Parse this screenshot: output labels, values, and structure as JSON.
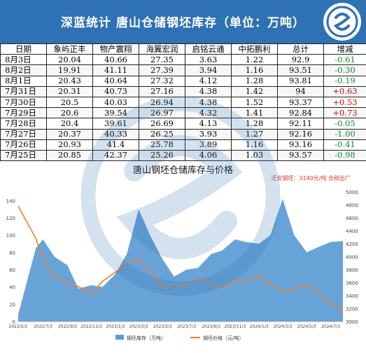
{
  "header": {
    "title": "深蓝统计  唐山仓储钢坯库存（单位：万吨）"
  },
  "table": {
    "columns": [
      "日期",
      "象屿正丰",
      "物产震翔",
      "海翼宏润",
      "启铭云通",
      "中拓鹏利",
      "总计",
      "增减"
    ],
    "rows": [
      [
        "8月3日",
        "20.04",
        "40.66",
        "27.35",
        "3.63",
        "1.22",
        "92.9",
        "-0.61"
      ],
      [
        "8月2日",
        "19.91",
        "41.11",
        "27.39",
        "3.94",
        "1.16",
        "93.51",
        "-0.30"
      ],
      [
        "8月1日",
        "20.43",
        "40.64",
        "27.32",
        "4.12",
        "1.28",
        "93.81",
        "-0.19"
      ],
      [
        "7月31日",
        "20.31",
        "40.73",
        "27.16",
        "4.38",
        "1.42",
        "94",
        "+0.63"
      ],
      [
        "7月30日",
        "20.5",
        "40.03",
        "26.94",
        "4.38",
        "1.52",
        "93.37",
        "+0.53"
      ],
      [
        "7月29日",
        "20.6",
        "39.54",
        "26.97",
        "4.32",
        "1.41",
        "92.84",
        "+0.73"
      ],
      [
        "7月28日",
        "20.4",
        "39.61",
        "26.69",
        "4.13",
        "1.28",
        "92.11",
        "-0.05"
      ],
      [
        "7月27日",
        "20.37",
        "40.33",
        "26.25",
        "3.93",
        "1.27",
        "92.16",
        "-1.00"
      ],
      [
        "7月26日",
        "20.93",
        "41.4",
        "25.78",
        "3.89",
        "1.16",
        "93.16",
        "-0.41"
      ],
      [
        "7月25日",
        "20.85",
        "42.37",
        "25.26",
        "4.06",
        "1.03",
        "93.57",
        "-0.98"
      ]
    ]
  },
  "colors": {
    "header": "#2f71b5",
    "area": "#5b9bd5",
    "price": "#ed7d31",
    "positive": "#d40000",
    "negative": "#0a8a2a"
  },
  "chart_data": {
    "type": "area",
    "title": "唐山钢坯仓储库存与价格",
    "annotation": "迁安钢坯：3140元/吨 含税出厂",
    "x": [
      "2022/5/1",
      "2022/6/15",
      "2022/7/3",
      "2022/8/1",
      "2022/9/3",
      "2022/10/1",
      "2022/11/3",
      "2022/12/1",
      "2023/1/3",
      "2023/2/1",
      "2023/3/3",
      "2023/4/1",
      "2023/5/3",
      "2023/6/1",
      "2023/7/3",
      "2023/8/1",
      "2023/9/3",
      "2023/10/1",
      "2023/11/3",
      "2023/12/1",
      "2024/1/3",
      "2024/2/1",
      "2024/3/3",
      "2024/4/1",
      "2024/5/3",
      "2024/6/1",
      "2024/7/3",
      "2024/8/3"
    ],
    "x_ticks": [
      "2022/5/1",
      "2022/7/3",
      "2022/9/3",
      "2022/11/3",
      "2023/1/3",
      "2023/3/3",
      "2023/5/3",
      "2023/7/3",
      "2023/9/3",
      "2023/11/3",
      "2024/1/3",
      "2024/3/3",
      "2024/5/3",
      "2024/7/3"
    ],
    "y_left_ticks": [
      0,
      20,
      40,
      60,
      80,
      100,
      120,
      140
    ],
    "y_right_ticks": [
      3000,
      3200,
      3400,
      3600,
      3800,
      4000,
      4200,
      4400,
      4600,
      4800,
      5000
    ],
    "ylim_left": [
      0,
      150
    ],
    "ylim_right": [
      3000,
      5000
    ],
    "series": [
      {
        "name": "钢坯库存（万吨）",
        "axis": "left",
        "values": [
          8,
          85,
          95,
          75,
          65,
          38,
          42,
          40,
          55,
          78,
          130,
          100,
          72,
          52,
          60,
          62,
          78,
          82,
          95,
          92,
          90,
          100,
          142,
          100,
          80,
          86,
          92,
          93
        ]
      },
      {
        "name": "钢坯价格（元/吨）",
        "axis": "right",
        "values": [
          4780,
          4280,
          3950,
          3700,
          3600,
          3540,
          3420,
          3620,
          3760,
          3880,
          3980,
          3780,
          3530,
          3520,
          3580,
          3660,
          3580,
          3520,
          3640,
          3620,
          3700,
          3560,
          3470,
          3500,
          3560,
          3450,
          3280,
          3140
        ]
      }
    ],
    "legend_position": "bottom"
  }
}
